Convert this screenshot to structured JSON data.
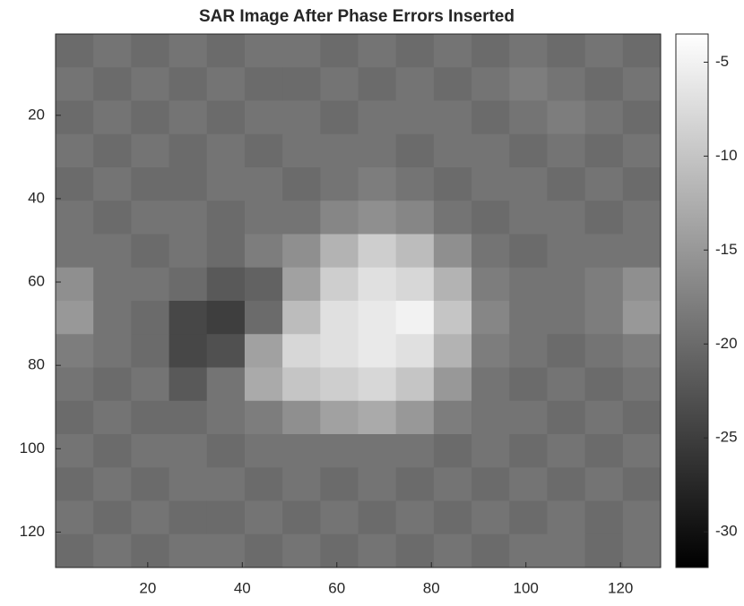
{
  "chart_data": {
    "type": "heatmap",
    "title": "SAR Image After Phase Errors Inserted",
    "xbins": [
      0.5,
      8.5,
      16.5,
      24.5,
      32.5,
      40.5,
      48.5,
      56.5,
      64.5,
      72.5,
      80.5,
      88.5,
      96.5,
      104.5,
      112.5,
      120.5,
      128.5
    ],
    "ybins": [
      0.5,
      8.5,
      16.5,
      24.5,
      32.5,
      40.5,
      48.5,
      56.5,
      64.5,
      72.5,
      80.5,
      88.5,
      96.5,
      104.5,
      112.5,
      120.5,
      128.5
    ],
    "values": [
      [
        -20,
        -19,
        -20,
        -19,
        -20,
        -19,
        -19,
        -20,
        -19,
        -20,
        -19,
        -20,
        -19,
        -20,
        -19,
        -20
      ],
      [
        -19,
        -20,
        -19,
        -20,
        -19,
        -20,
        -20,
        -19,
        -20,
        -19,
        -20,
        -19,
        -18,
        -19,
        -20,
        -19
      ],
      [
        -20,
        -19,
        -20,
        -19,
        -20,
        -19,
        -19,
        -20,
        -19,
        -19,
        -19,
        -20,
        -19,
        -18,
        -19,
        -20
      ],
      [
        -19,
        -20,
        -19,
        -20,
        -19,
        -20,
        -19,
        -19,
        -19,
        -20,
        -19,
        -19,
        -20,
        -19,
        -20,
        -19
      ],
      [
        -20,
        -19,
        -20,
        -20,
        -19,
        -19,
        -20,
        -19,
        -18,
        -19,
        -20,
        -19,
        -19,
        -20,
        -19,
        -20
      ],
      [
        -19,
        -20,
        -19,
        -19,
        -20,
        -19,
        -19,
        -17,
        -16,
        -17,
        -19,
        -20,
        -19,
        -19,
        -20,
        -19
      ],
      [
        -19,
        -19,
        -20,
        -19,
        -20,
        -18,
        -16,
        -12,
        -9,
        -11,
        -16,
        -19,
        -20,
        -19,
        -19,
        -19
      ],
      [
        -16,
        -19,
        -19,
        -20,
        -22,
        -21,
        -14,
        -9,
        -7,
        -8,
        -12,
        -18,
        -19,
        -19,
        -18,
        -16
      ],
      [
        -15,
        -19,
        -20,
        -24,
        -25,
        -20,
        -11,
        -7,
        -6,
        -5,
        -10,
        -17,
        -19,
        -19,
        -18,
        -15
      ],
      [
        -18,
        -19,
        -20,
        -24,
        -23,
        -14,
        -8,
        -7,
        -6,
        -7,
        -12,
        -18,
        -19,
        -20,
        -19,
        -18
      ],
      [
        -19,
        -20,
        -19,
        -22,
        -19,
        -13,
        -10,
        -9,
        -8,
        -10,
        -15,
        -19,
        -20,
        -19,
        -20,
        -19
      ],
      [
        -20,
        -19,
        -20,
        -20,
        -19,
        -18,
        -16,
        -14,
        -13,
        -15,
        -18,
        -19,
        -19,
        -20,
        -19,
        -20
      ],
      [
        -19,
        -20,
        -19,
        -19,
        -20,
        -19,
        -19,
        -19,
        -19,
        -19,
        -20,
        -19,
        -20,
        -19,
        -20,
        -19
      ],
      [
        -20,
        -19,
        -20,
        -19,
        -19,
        -20,
        -19,
        -20,
        -19,
        -20,
        -19,
        -20,
        -19,
        -20,
        -19,
        -20
      ],
      [
        -19,
        -20,
        -19,
        -20,
        -20,
        -19,
        -20,
        -19,
        -20,
        -19,
        -20,
        -19,
        -20,
        -19,
        -20,
        -19
      ],
      [
        -20,
        -19,
        -20,
        -19,
        -19,
        -20,
        -19,
        -20,
        -19,
        -20,
        -19,
        -20,
        -19,
        -19,
        -20,
        -19
      ]
    ],
    "xlim": [
      0.5,
      128.5
    ],
    "ylim": [
      0.5,
      128.5
    ],
    "y_reversed": true,
    "xticks": [
      20,
      40,
      60,
      80,
      100,
      120
    ],
    "yticks": [
      20,
      40,
      60,
      80,
      100,
      120
    ],
    "colormap": "gray",
    "clim": [
      -31.9,
      -3.5
    ],
    "cticks": [
      -5,
      -10,
      -15,
      -20,
      -25,
      -30
    ]
  }
}
